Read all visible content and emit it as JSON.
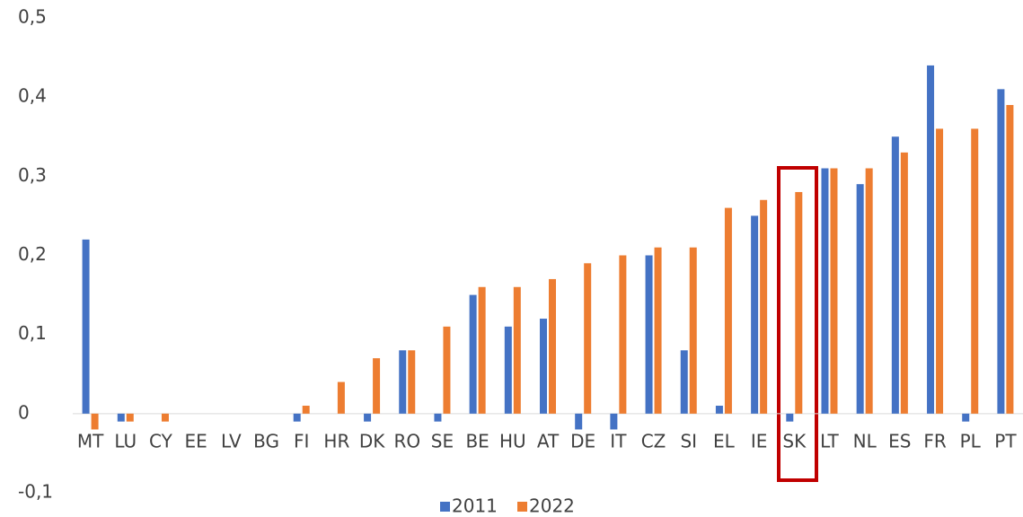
{
  "chart_data": {
    "type": "bar",
    "categories": [
      "MT",
      "LU",
      "CY",
      "EE",
      "LV",
      "BG",
      "FI",
      "HR",
      "DK",
      "RO",
      "SE",
      "BE",
      "HU",
      "AT",
      "DE",
      "IT",
      "CZ",
      "SI",
      "EL",
      "IE",
      "SK",
      "LT",
      "NL",
      "ES",
      "FR",
      "PL",
      "PT"
    ],
    "series": [
      {
        "name": "2011",
        "color": "#4472c4",
        "values": [
          0.22,
          -0.01,
          0,
          0,
          0,
          0,
          -0.01,
          0,
          -0.01,
          0.08,
          -0.01,
          0.15,
          0.11,
          0.12,
          -0.02,
          -0.02,
          0.2,
          0.08,
          0.01,
          0.25,
          -0.01,
          0.31,
          0.29,
          0.35,
          0.44,
          -0.01,
          0.41
        ]
      },
      {
        "name": "2022",
        "color": "#ed7d31",
        "values": [
          -0.02,
          -0.01,
          -0.01,
          0,
          0,
          0,
          0.01,
          0.04,
          0.07,
          0.08,
          0.11,
          0.16,
          0.16,
          0.17,
          0.19,
          0.2,
          0.21,
          0.21,
          0.26,
          0.27,
          0.28,
          0.31,
          0.31,
          0.33,
          0.36,
          0.36,
          0.39
        ]
      }
    ],
    "ylim": [
      -0.1,
      0.5
    ],
    "yticks": [
      {
        "value": -0.1,
        "label": "-0,1"
      },
      0,
      {
        "value": 0.1,
        "label": "0,1"
      },
      {
        "value": 0.2,
        "label": "0,2"
      },
      {
        "value": 0.3,
        "label": "0,3"
      },
      {
        "value": 0.4,
        "label": "0,4"
      },
      {
        "value": 0.5,
        "label": "0,5"
      }
    ],
    "grid": false,
    "legend": "bottom"
  }
}
